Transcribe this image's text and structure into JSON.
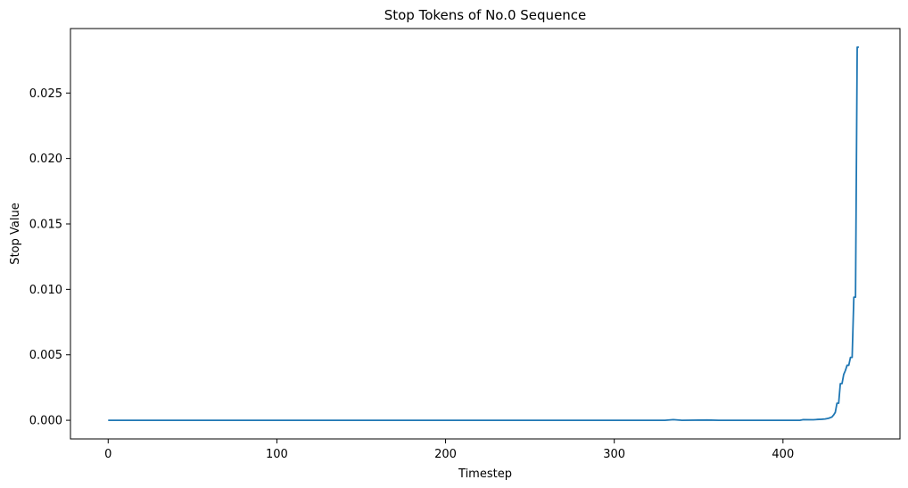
{
  "chart_data": {
    "type": "line",
    "title": "Stop Tokens of No.0 Sequence",
    "xlabel": "Timestep",
    "ylabel": "Stop Value",
    "xlim": [
      -22.35,
      469.35
    ],
    "ylim": [
      -0.001425,
      0.029925
    ],
    "grid": false,
    "legend": "none",
    "x_ticks": [
      0,
      100,
      200,
      300,
      400
    ],
    "x_tick_labels": [
      "0",
      "100",
      "200",
      "300",
      "400"
    ],
    "y_ticks": [
      0.0,
      0.005,
      0.01,
      0.015,
      0.02,
      0.025
    ],
    "y_tick_labels": [
      "0.000",
      "0.005",
      "0.010",
      "0.015",
      "0.020",
      "0.025"
    ],
    "series": [
      {
        "color": "#1f77b4",
        "points": [
          [
            0,
            0.0
          ],
          [
            100,
            0.0
          ],
          [
            200,
            0.0
          ],
          [
            300,
            0.0
          ],
          [
            330,
            0.0
          ],
          [
            335,
            5e-05
          ],
          [
            340,
            0.0
          ],
          [
            355,
            2e-05
          ],
          [
            362,
            0.0
          ],
          [
            400,
            0.0
          ],
          [
            410,
            0.0
          ],
          [
            412,
            5e-05
          ],
          [
            418,
            4e-05
          ],
          [
            420,
            6e-05
          ],
          [
            423,
            8e-05
          ],
          [
            425,
            0.0001
          ],
          [
            427,
            0.00015
          ],
          [
            429,
            0.00025
          ],
          [
            430,
            0.0004
          ],
          [
            431,
            0.0006
          ],
          [
            432,
            0.0013
          ],
          [
            433,
            0.0013
          ],
          [
            434,
            0.0028
          ],
          [
            435,
            0.0028
          ],
          [
            436,
            0.0035
          ],
          [
            437,
            0.0038
          ],
          [
            438,
            0.0042
          ],
          [
            439,
            0.0042
          ],
          [
            440,
            0.0048
          ],
          [
            441,
            0.0048
          ],
          [
            442,
            0.0094
          ],
          [
            443,
            0.0094
          ],
          [
            444,
            0.0285
          ],
          [
            445,
            0.0285
          ]
        ]
      }
    ]
  }
}
